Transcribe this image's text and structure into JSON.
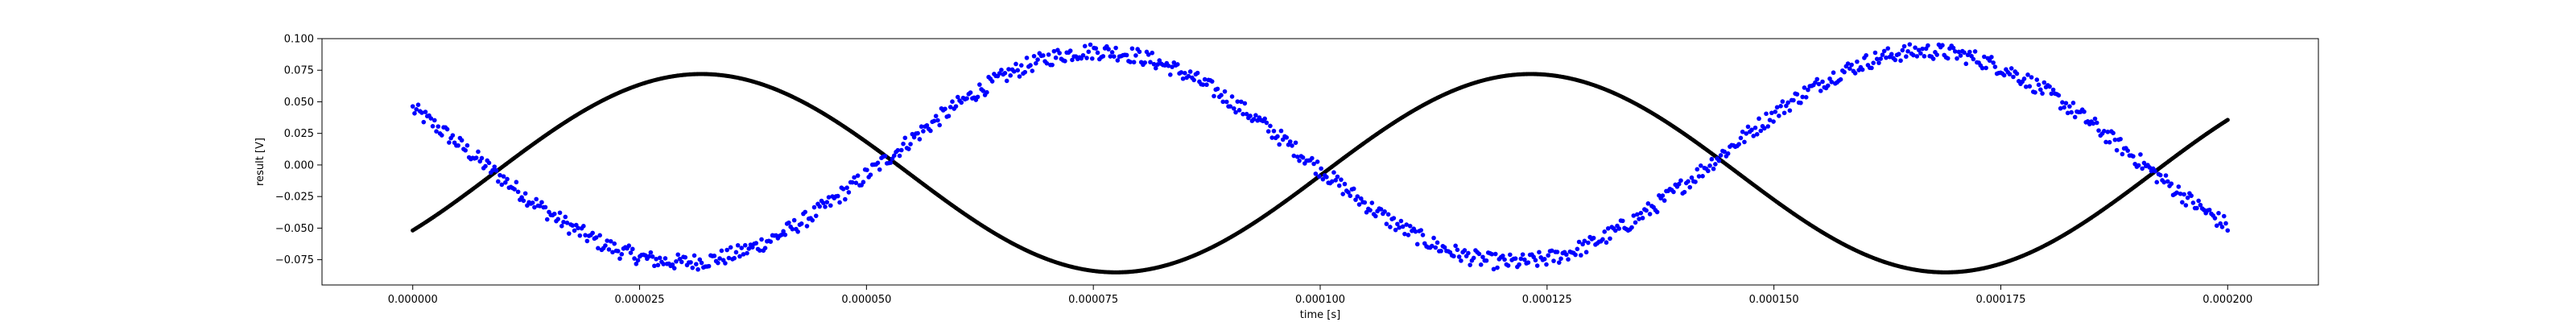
{
  "chart_data": {
    "type": "scatter",
    "title": "",
    "xlabel": "time [s]",
    "ylabel": "result [V]",
    "xlim": [
      -1e-05,
      0.00021
    ],
    "ylim": [
      -0.095,
      0.1
    ],
    "grid": false,
    "xticks": [
      0.0,
      2.5e-05,
      5e-05,
      7.5e-05,
      0.0001,
      0.000125,
      0.00015,
      0.000175,
      0.0002
    ],
    "xtick_labels": [
      "0.000000",
      "0.000025",
      "0.000050",
      "0.000075",
      "0.000100",
      "0.000125",
      "0.000150",
      "0.000175",
      "0.000200"
    ],
    "yticks": [
      -0.075,
      -0.05,
      -0.025,
      0.0,
      0.025,
      0.05,
      0.075,
      0.1
    ],
    "ytick_labels": [
      "−0.075",
      "−0.050",
      "−0.025",
      "0.000",
      "0.025",
      "0.050",
      "0.075",
      "0.100"
    ],
    "series": [
      {
        "color": "#000000",
        "marker": "dot",
        "x_start": 0.0,
        "x_end": 0.0002,
        "model": "sine",
        "amplitude": 0.0785,
        "offset": -0.0065,
        "period_s": 9.14e-05,
        "phase_peak_s": 3.18e-05,
        "points": [
          [
            0.0,
            -0.054
          ],
          [
            1e-05,
            -0.018
          ],
          [
            2e-05,
            0.04
          ],
          [
            3e-05,
            0.072
          ],
          [
            4e-05,
            0.062
          ],
          [
            5e-05,
            0.018
          ],
          [
            6e-05,
            -0.04
          ],
          [
            7e-05,
            -0.08
          ],
          [
            8e-05,
            -0.083
          ],
          [
            9e-05,
            -0.053
          ],
          [
            0.0001,
            -0.005
          ],
          [
            0.00011,
            0.046
          ],
          [
            0.00012,
            0.072
          ],
          [
            0.00013,
            0.06
          ],
          [
            0.00014,
            0.018
          ],
          [
            0.00015,
            -0.041
          ],
          [
            0.00016,
            -0.08
          ],
          [
            0.00017,
            -0.085
          ],
          [
            0.00018,
            -0.058
          ],
          [
            0.00019,
            -0.01
          ],
          [
            0.0002,
            0.04
          ]
        ]
      },
      {
        "color": "#0000ff",
        "marker": "dot",
        "x_start": 0.0,
        "x_end": 0.0002,
        "model": "noisy sine",
        "amplitude": 0.0835,
        "offset": 0.0065,
        "period_s": 9.14e-05,
        "phase_trough_s": 2.97e-05,
        "noise": 0.004,
        "points": [
          [
            0.0,
            0.038
          ],
          [
            1e-05,
            -0.008
          ],
          [
            2e-05,
            -0.055
          ],
          [
            3e-05,
            -0.076
          ],
          [
            4e-05,
            -0.07
          ],
          [
            5e-05,
            -0.025
          ],
          [
            6e-05,
            0.028
          ],
          [
            7e-05,
            0.08
          ],
          [
            8e-05,
            0.085
          ],
          [
            9e-05,
            0.05
          ],
          [
            0.0001,
            -0.005
          ],
          [
            0.00011,
            -0.052
          ],
          [
            0.00012,
            -0.078
          ],
          [
            0.00013,
            -0.065
          ],
          [
            0.00014,
            -0.01
          ],
          [
            0.00015,
            0.05
          ],
          [
            0.00016,
            0.085
          ],
          [
            0.00017,
            0.083
          ],
          [
            0.00018,
            0.045
          ],
          [
            0.00019,
            -0.01
          ],
          [
            0.0002,
            -0.05
          ]
        ]
      }
    ]
  }
}
